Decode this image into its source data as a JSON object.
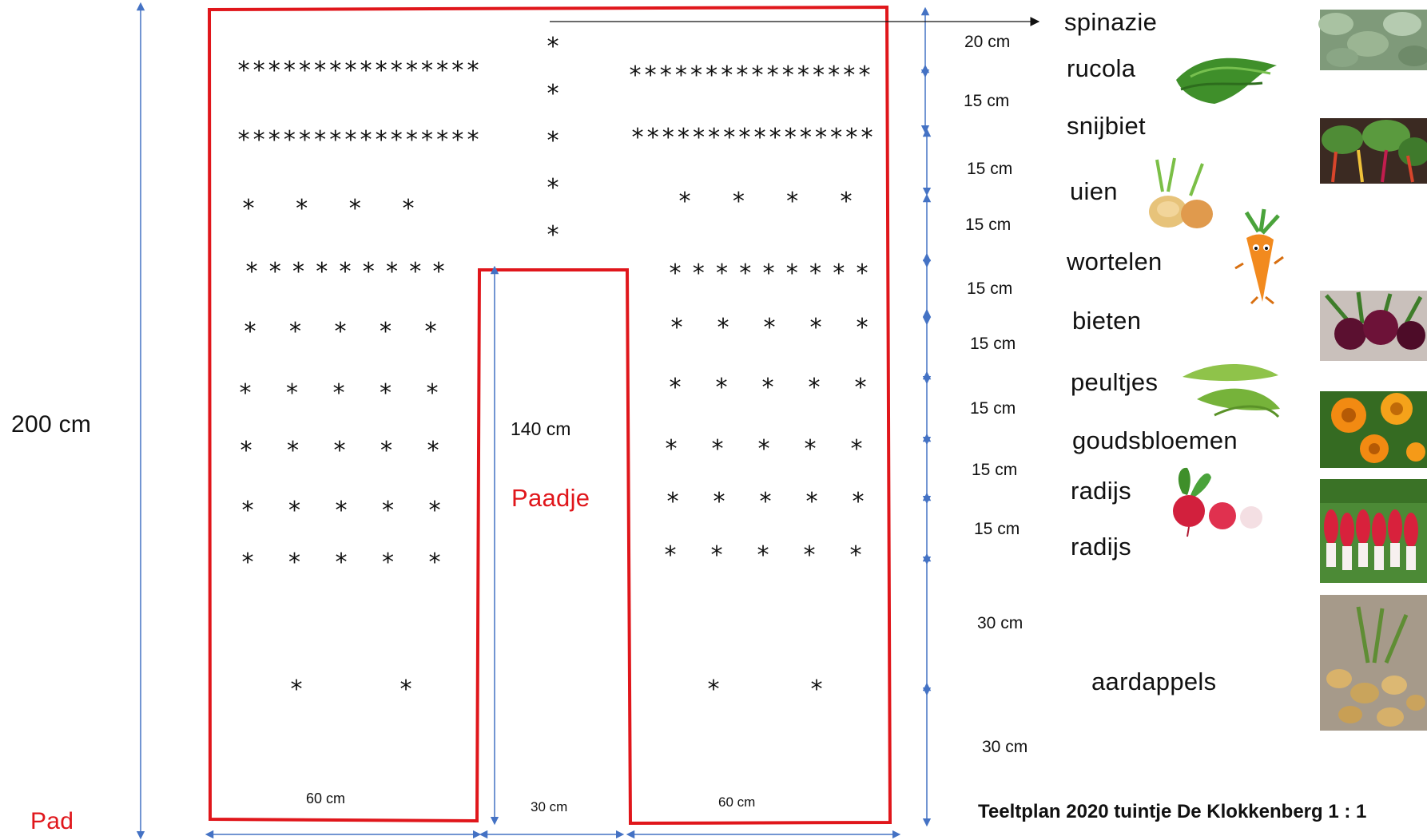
{
  "colors": {
    "bed_border": "#e0161b",
    "dimension_arrows": "#4472c4",
    "path_text": "#e0161b"
  },
  "dimensions": {
    "total_height": "200 cm",
    "path_length": "140  cm",
    "bed_width_left": "60  cm",
    "path_width": "30 cm",
    "bed_width_right": "60 cm"
  },
  "labels": {
    "pad": "Pad",
    "paadje": "Paadje"
  },
  "row_spacings": [
    "20 cm",
    "15 cm",
    "15 cm",
    "15 cm",
    "15 cm",
    "15 cm",
    "15 cm",
    "15 cm",
    "15 cm",
    "30 cm",
    "30 cm"
  ],
  "crops": [
    "spinazie",
    "rucola",
    "snijbiet",
    "uien",
    "wortelen",
    "bieten",
    "peultjes",
    "goudsbloemen",
    "radijs",
    "radijs",
    "aardappels"
  ],
  "planting_rows": {
    "dense": "****************",
    "dense_right": "****************",
    "onion": "*  *  *  *",
    "carrot": "* * * * * * * * *",
    "five": "*  *  *  *  *",
    "potato": "*  *"
  },
  "icons": [
    "spinach-photo",
    "arugula-photo",
    "chard-photo",
    "onion-photo",
    "carrot-cartoon",
    "beetroot-photo",
    "pea-pods-photo",
    "marigold-photo",
    "radish-photo",
    "radish-bunch-photo",
    "potato-photo"
  ],
  "title": "Teeltplan 2020 tuintje De Klokkenberg  1 : 1"
}
